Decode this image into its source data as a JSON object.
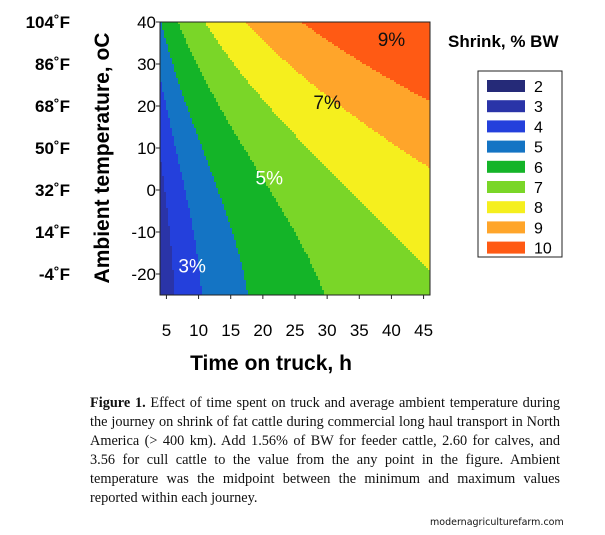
{
  "chart_data": {
    "type": "heatmap",
    "subtype": "filled-contour",
    "legend_title": "Shrink, % BW",
    "legend_levels": [
      2,
      3,
      4,
      5,
      6,
      7,
      8,
      9,
      10
    ],
    "colors": {
      "2": "#252a78",
      "3": "#2a34a8",
      "4": "#2440dc",
      "5": "#1474c4",
      "6": "#14b428",
      "7": "#7ad628",
      "8": "#f5ef1e",
      "9": "#ffa52a",
      "10": "#ff5a14"
    },
    "x": {
      "label": "Time on truck, h",
      "range": [
        4,
        46
      ],
      "ticks": [
        "5",
        "10",
        "15",
        "20",
        "25",
        "30",
        "35",
        "40",
        "45"
      ]
    },
    "y": {
      "label": "Ambient temperature, oC",
      "range": [
        -25,
        40
      ],
      "ticks": [
        "40",
        "30",
        "20",
        "10",
        "0",
        "-10",
        "-20"
      ]
    },
    "y_fahrenheit_labels": [
      "104˚F",
      "86˚F",
      "68˚F",
      "50˚F",
      "32˚F",
      "14˚F",
      "-4˚F"
    ],
    "annotations": [
      {
        "text": "9%",
        "x": 40,
        "y": 36
      },
      {
        "text": "7%",
        "x": 30,
        "y": 21
      },
      {
        "text": "5%",
        "x": 21,
        "y": 3
      },
      {
        "text": "3%",
        "x": 9,
        "y": -18
      }
    ]
  },
  "caption": {
    "label": "Figure 1.",
    "text": "Effect of time spent on truck and average ambient temperature during the journey on shrink of fat cattle during commercial long haul transport in North America (> 400 km). Add 1.56% of BW for feeder cattle, 2.60 for calves, and 3.56 for cull cattle to the value from the any point in the figure. Ambient temperature was the midpoint between the minimum and maximum values reported within each journey."
  },
  "watermark": "modernagriculturefarm.com"
}
